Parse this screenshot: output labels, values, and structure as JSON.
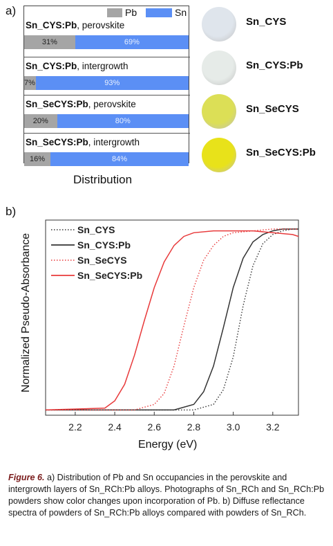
{
  "panel_a": {
    "label": "a)",
    "legend": {
      "pb": "Pb",
      "sn": "Sn"
    },
    "colors": {
      "pb": "#a5a5a5",
      "sn": "#5b8ff5"
    },
    "xlabel": "Distribution",
    "rows": [
      {
        "sample": "Sn_CYS:Pb",
        "layer": ", perovskite",
        "pb": 31,
        "sn": 69,
        "pb_label": "31%",
        "sn_label": "69%"
      },
      {
        "sample": "Sn_CYS:Pb",
        "layer": ", intergrowth",
        "pb": 7,
        "sn": 93,
        "pb_label": "7%",
        "sn_label": "93%"
      },
      {
        "sample": "Sn_SeCYS:Pb",
        "layer": ", perovskite",
        "pb": 20,
        "sn": 80,
        "pb_label": "20%",
        "sn_label": "80%"
      },
      {
        "sample": "Sn_SeCYS:Pb",
        "layer": ", intergrowth",
        "pb": 16,
        "sn": 84,
        "pb_label": "16%",
        "sn_label": "84%"
      }
    ],
    "samples": [
      {
        "name": "Sn_CYS",
        "color": "#dfe5ec"
      },
      {
        "name": "Sn_CYS:Pb",
        "color": "#e6ebe8"
      },
      {
        "name": "Sn_SeCYS",
        "color": "#dcdf56"
      },
      {
        "name": "Sn_SeCYS:Pb",
        "color": "#e8e21a"
      }
    ]
  },
  "panel_b": {
    "label": "b)",
    "chart_data": {
      "type": "line",
      "xlabel": "Energy (eV)",
      "ylabel": "Normalized Pseudo-Absorbance",
      "xlim": [
        2.05,
        3.33
      ],
      "ylim": [
        0,
        1
      ],
      "xticks": [
        "2.2",
        "2.4",
        "2.6",
        "2.8",
        "3.0",
        "3.2"
      ],
      "legend_position": "top-left",
      "series": [
        {
          "name": "Sn_CYS",
          "color": "#333333",
          "style": "dotted",
          "points": [
            [
              2.05,
              0.01
            ],
            [
              2.8,
              0.01
            ],
            [
              2.9,
              0.04
            ],
            [
              2.95,
              0.12
            ],
            [
              3.0,
              0.3
            ],
            [
              3.05,
              0.58
            ],
            [
              3.1,
              0.8
            ],
            [
              3.15,
              0.92
            ],
            [
              3.2,
              0.97
            ],
            [
              3.25,
              0.99
            ],
            [
              3.3,
              1.0
            ],
            [
              3.33,
              1.0
            ]
          ]
        },
        {
          "name": "Sn_CYS:Pb",
          "color": "#333333",
          "style": "solid",
          "points": [
            [
              2.05,
              0.01
            ],
            [
              2.7,
              0.01
            ],
            [
              2.8,
              0.04
            ],
            [
              2.85,
              0.11
            ],
            [
              2.9,
              0.25
            ],
            [
              2.95,
              0.46
            ],
            [
              3.0,
              0.68
            ],
            [
              3.05,
              0.84
            ],
            [
              3.1,
              0.93
            ],
            [
              3.15,
              0.97
            ],
            [
              3.2,
              0.99
            ],
            [
              3.25,
              1.0
            ],
            [
              3.33,
              1.0
            ]
          ]
        },
        {
          "name": "Sn_SeCYS",
          "color": "#e8393a",
          "style": "dotted",
          "points": [
            [
              2.05,
              0.01
            ],
            [
              2.5,
              0.01
            ],
            [
              2.6,
              0.04
            ],
            [
              2.65,
              0.1
            ],
            [
              2.7,
              0.25
            ],
            [
              2.75,
              0.47
            ],
            [
              2.8,
              0.68
            ],
            [
              2.85,
              0.83
            ],
            [
              2.9,
              0.91
            ],
            [
              2.95,
              0.96
            ],
            [
              3.0,
              0.98
            ],
            [
              3.1,
              0.99
            ],
            [
              3.2,
              1.0
            ],
            [
              3.33,
              1.0
            ]
          ]
        },
        {
          "name": "Sn_SeCYS:Pb",
          "color": "#e8393a",
          "style": "solid",
          "points": [
            [
              2.05,
              0.01
            ],
            [
              2.35,
              0.02
            ],
            [
              2.4,
              0.06
            ],
            [
              2.45,
              0.15
            ],
            [
              2.5,
              0.31
            ],
            [
              2.55,
              0.5
            ],
            [
              2.6,
              0.68
            ],
            [
              2.65,
              0.82
            ],
            [
              2.7,
              0.91
            ],
            [
              2.75,
              0.96
            ],
            [
              2.8,
              0.98
            ],
            [
              2.9,
              0.99
            ],
            [
              3.1,
              0.99
            ],
            [
              3.3,
              0.97
            ],
            [
              3.33,
              0.96
            ]
          ]
        }
      ]
    }
  },
  "caption": {
    "fig": "Figure 6.",
    "text": "a) Distribution of Pb and Sn occupancies in the perovskite and intergrowth layers of Sn_RCh:Pb alloys. Photographs of Sn_RCh and Sn_RCh:Pb powders show color changes upon incorporation of Pb. b) Diffuse reflectance spectra of powders of Sn_RCh:Pb alloys compared with powders of Sn_RCh."
  }
}
